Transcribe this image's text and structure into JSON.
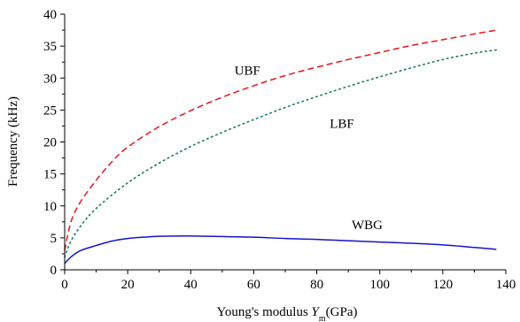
{
  "chart_data": {
    "type": "line",
    "title": "",
    "xlabel": "Young's modulus ",
    "xlabel_var": "Y",
    "xlabel_sub": "m",
    "xlabel_unit": "(GPa)",
    "ylabel": "Frequency (kHz)",
    "xlim": [
      0,
      140
    ],
    "ylim": [
      0,
      40
    ],
    "xticks": [
      "0",
      "20",
      "40",
      "60",
      "80",
      "100",
      "120",
      "140"
    ],
    "yticks": [
      "0",
      "5",
      "10",
      "15",
      "20",
      "25",
      "30",
      "35",
      "40"
    ],
    "grid": false,
    "legend": "none",
    "series": [
      {
        "name": "UBF",
        "color": "#e8141b",
        "style": "dashed",
        "x": [
          0,
          2,
          5,
          10,
          15,
          20,
          30,
          40,
          50,
          60,
          70,
          80,
          90,
          100,
          110,
          120,
          130,
          137
        ],
        "y": [
          3.0,
          7.5,
          10.6,
          14.0,
          16.9,
          19.2,
          22.4,
          24.9,
          27.0,
          28.8,
          30.4,
          31.7,
          32.9,
          34.0,
          35.1,
          36.0,
          36.9,
          37.5
        ]
      },
      {
        "name": "LBF",
        "color": "#1a7a6a",
        "style": "dotted",
        "x": [
          0,
          2,
          5,
          10,
          20,
          30,
          40,
          50,
          60,
          70,
          80,
          90,
          100,
          110,
          120,
          130,
          137
        ],
        "y": [
          2.0,
          4.5,
          6.8,
          9.6,
          13.6,
          16.7,
          19.3,
          21.5,
          23.5,
          25.4,
          27.1,
          28.7,
          30.2,
          31.6,
          32.9,
          33.9,
          34.4
        ]
      },
      {
        "name": "WBG",
        "color": "#1414cc",
        "style": "solid",
        "x": [
          0,
          2,
          5,
          10,
          15,
          20,
          25,
          30,
          40,
          50,
          60,
          70,
          80,
          90,
          100,
          110,
          120,
          130,
          137
        ],
        "y": [
          1.0,
          2.0,
          3.0,
          3.8,
          4.5,
          4.9,
          5.1,
          5.25,
          5.3,
          5.2,
          5.1,
          4.9,
          4.75,
          4.55,
          4.35,
          4.15,
          3.9,
          3.5,
          3.2
        ]
      }
    ],
    "annotations": [
      {
        "text": "UBF",
        "x": 58,
        "y": 30.5
      },
      {
        "text": "LBF",
        "x": 88,
        "y": 22.2
      },
      {
        "text": "WBG",
        "x": 96,
        "y": 6.4
      }
    ]
  }
}
